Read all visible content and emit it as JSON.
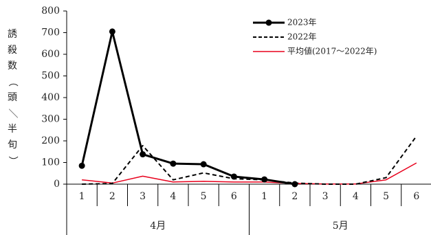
{
  "chart_data": {
    "type": "line",
    "ylabel": "誘殺数（頭／半旬）",
    "ylim": [
      0,
      800
    ],
    "yticks": [
      0,
      100,
      200,
      300,
      400,
      500,
      600,
      700,
      800
    ],
    "month_groups": [
      {
        "label": "4月",
        "categories": [
          "1",
          "2",
          "3",
          "4",
          "5",
          "6"
        ]
      },
      {
        "label": "5月",
        "categories": [
          "1",
          "2",
          "3",
          "4",
          "5",
          "6"
        ]
      }
    ],
    "series": [
      {
        "name": "2023年",
        "style": "thick-solid-markers",
        "color": "#000000",
        "values": [
          85,
          705,
          138,
          95,
          92,
          35,
          22,
          0,
          null,
          null,
          null,
          null
        ]
      },
      {
        "name": "2022年",
        "style": "dashed",
        "color": "#000000",
        "values": [
          0,
          3,
          178,
          20,
          52,
          25,
          20,
          5,
          0,
          0,
          30,
          222
        ]
      },
      {
        "name": "平均値(2017～2022年)",
        "style": "thin-solid",
        "color": "#e8001c",
        "values": [
          20,
          5,
          37,
          10,
          13,
          10,
          10,
          3,
          1,
          1,
          20,
          98
        ]
      }
    ],
    "grid": false,
    "legend_position": "top-right"
  }
}
